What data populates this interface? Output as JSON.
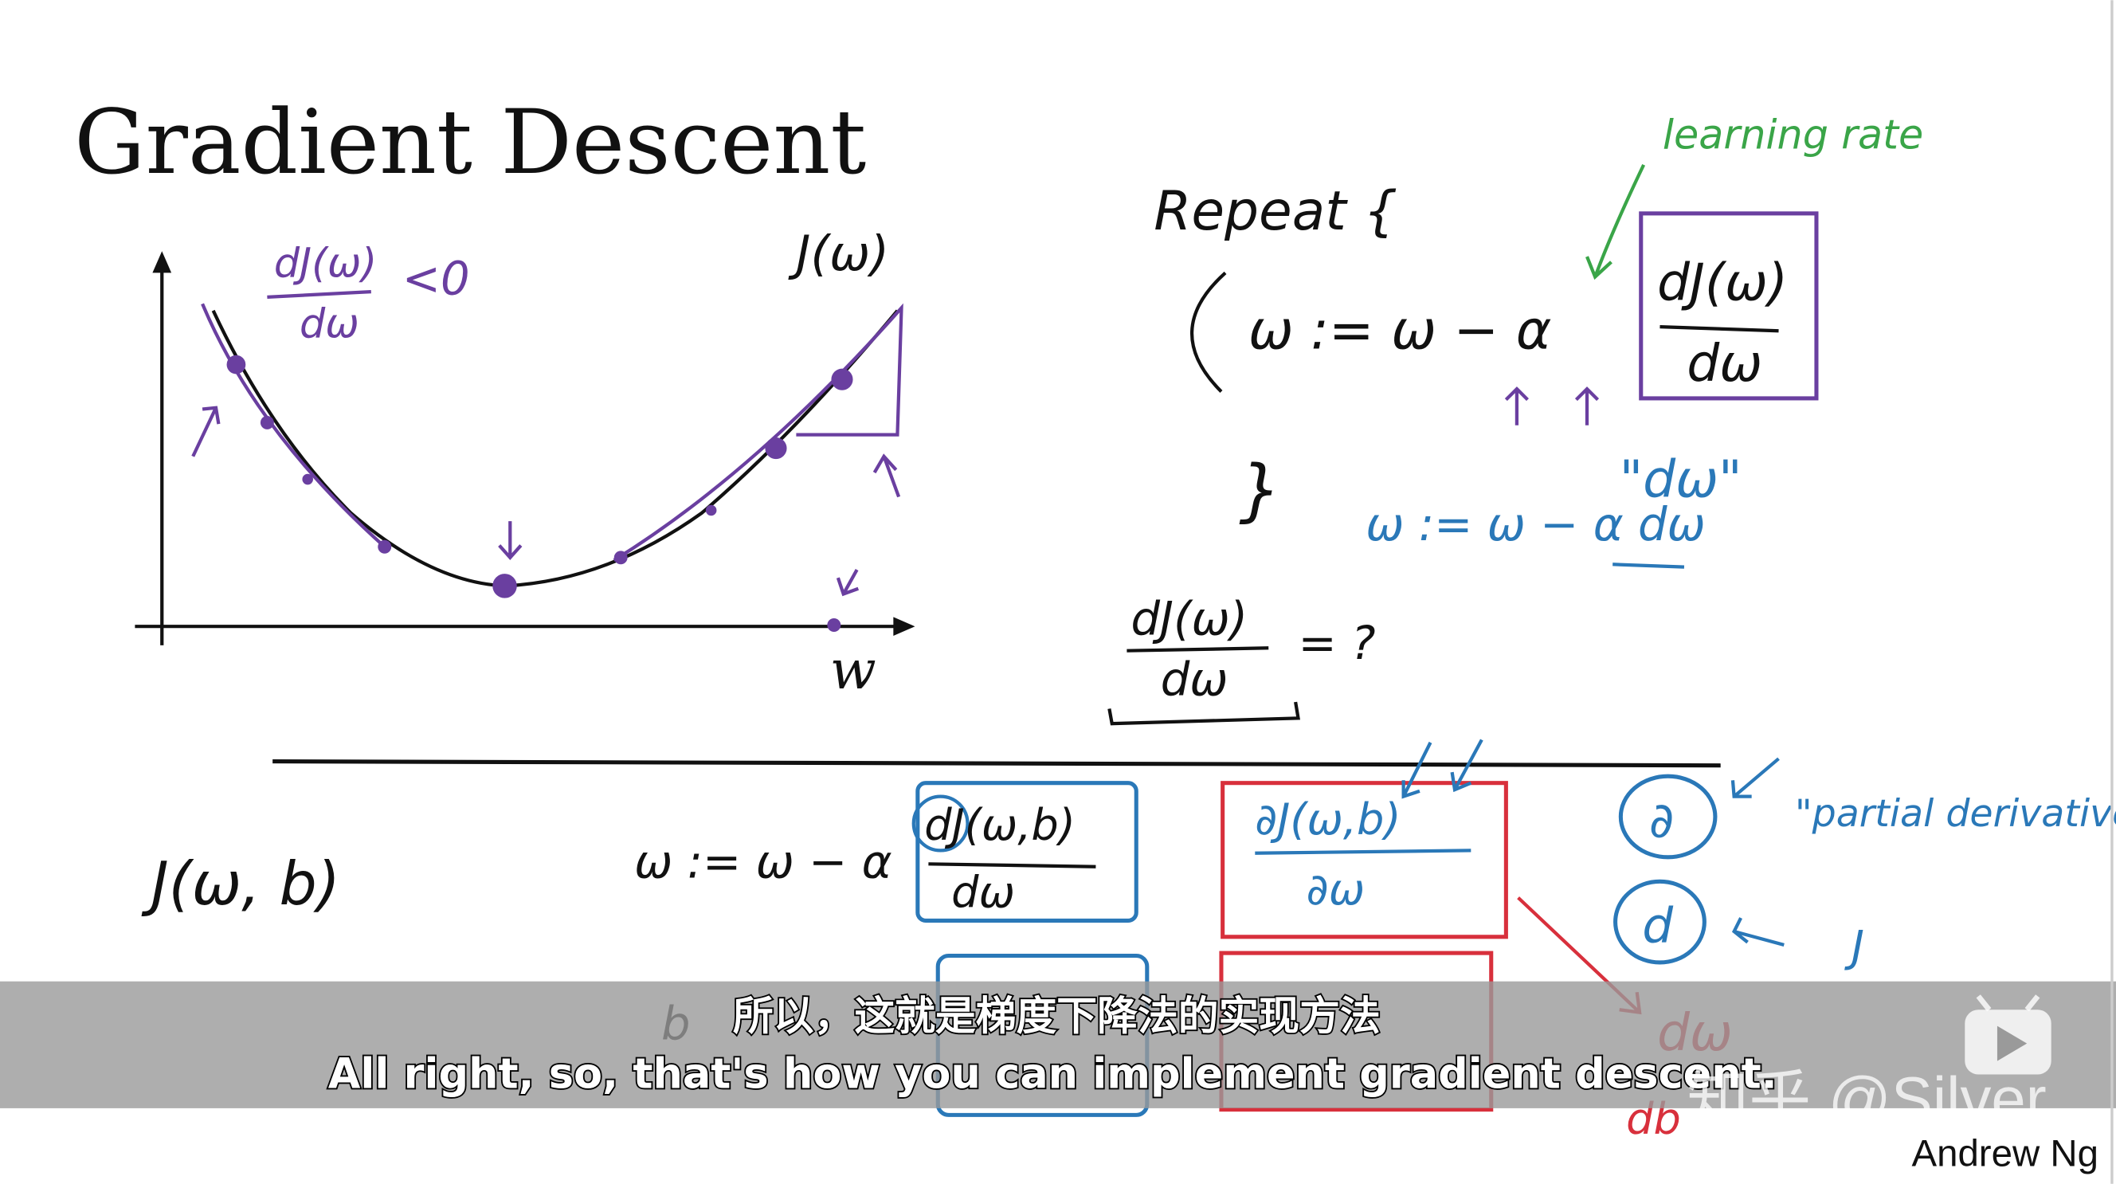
{
  "slide": {
    "title": "Gradient Descent",
    "author": "Andrew Ng",
    "graph": {
      "curve_label": "J(ω)",
      "x_axis_label": "w",
      "slope_num": "dJ(ω)",
      "slope_den": "dω",
      "slope_cmp": "<0"
    },
    "algorithm": {
      "repeat": "Repeat {",
      "update_lhs": "ω := ω − α",
      "deriv_num": "dJ(ω)",
      "deriv_den": "dω",
      "close_brace": "}",
      "learning_rate": "learning rate",
      "dw_quote": "\"dω\"",
      "code_update": "ω := ω − α dω",
      "question_num": "dJ(ω)",
      "question_den": "dω",
      "question_rhs": "= ?"
    },
    "bottom": {
      "cost": "J(ω, b)",
      "update_lhs": "ω := ω − α",
      "deriv_num": "dJ(ω,b)",
      "deriv_den": "dω",
      "partial_num": "∂J(ω,b)",
      "partial_den": "∂ω",
      "partial_symbol": "∂",
      "d_symbol": "d",
      "partial_label": "\"partial derivative\"",
      "j_label": "J",
      "dw_red": "dω",
      "db_red": "db",
      "b_update": "b"
    }
  },
  "subtitles": {
    "chinese": "所以，这就是梯度下降法的实现方法",
    "english": "All right, so, that's how you can implement gradient descent."
  },
  "watermark": {
    "text": "知乎 @Silver",
    "icon": "bilibili-play-icon"
  },
  "colors": {
    "purple": "#6a3fa0",
    "green": "#3aa548",
    "blue": "#2a78b8",
    "red": "#d8303c",
    "subtitle_band": "#9a9a9a"
  }
}
